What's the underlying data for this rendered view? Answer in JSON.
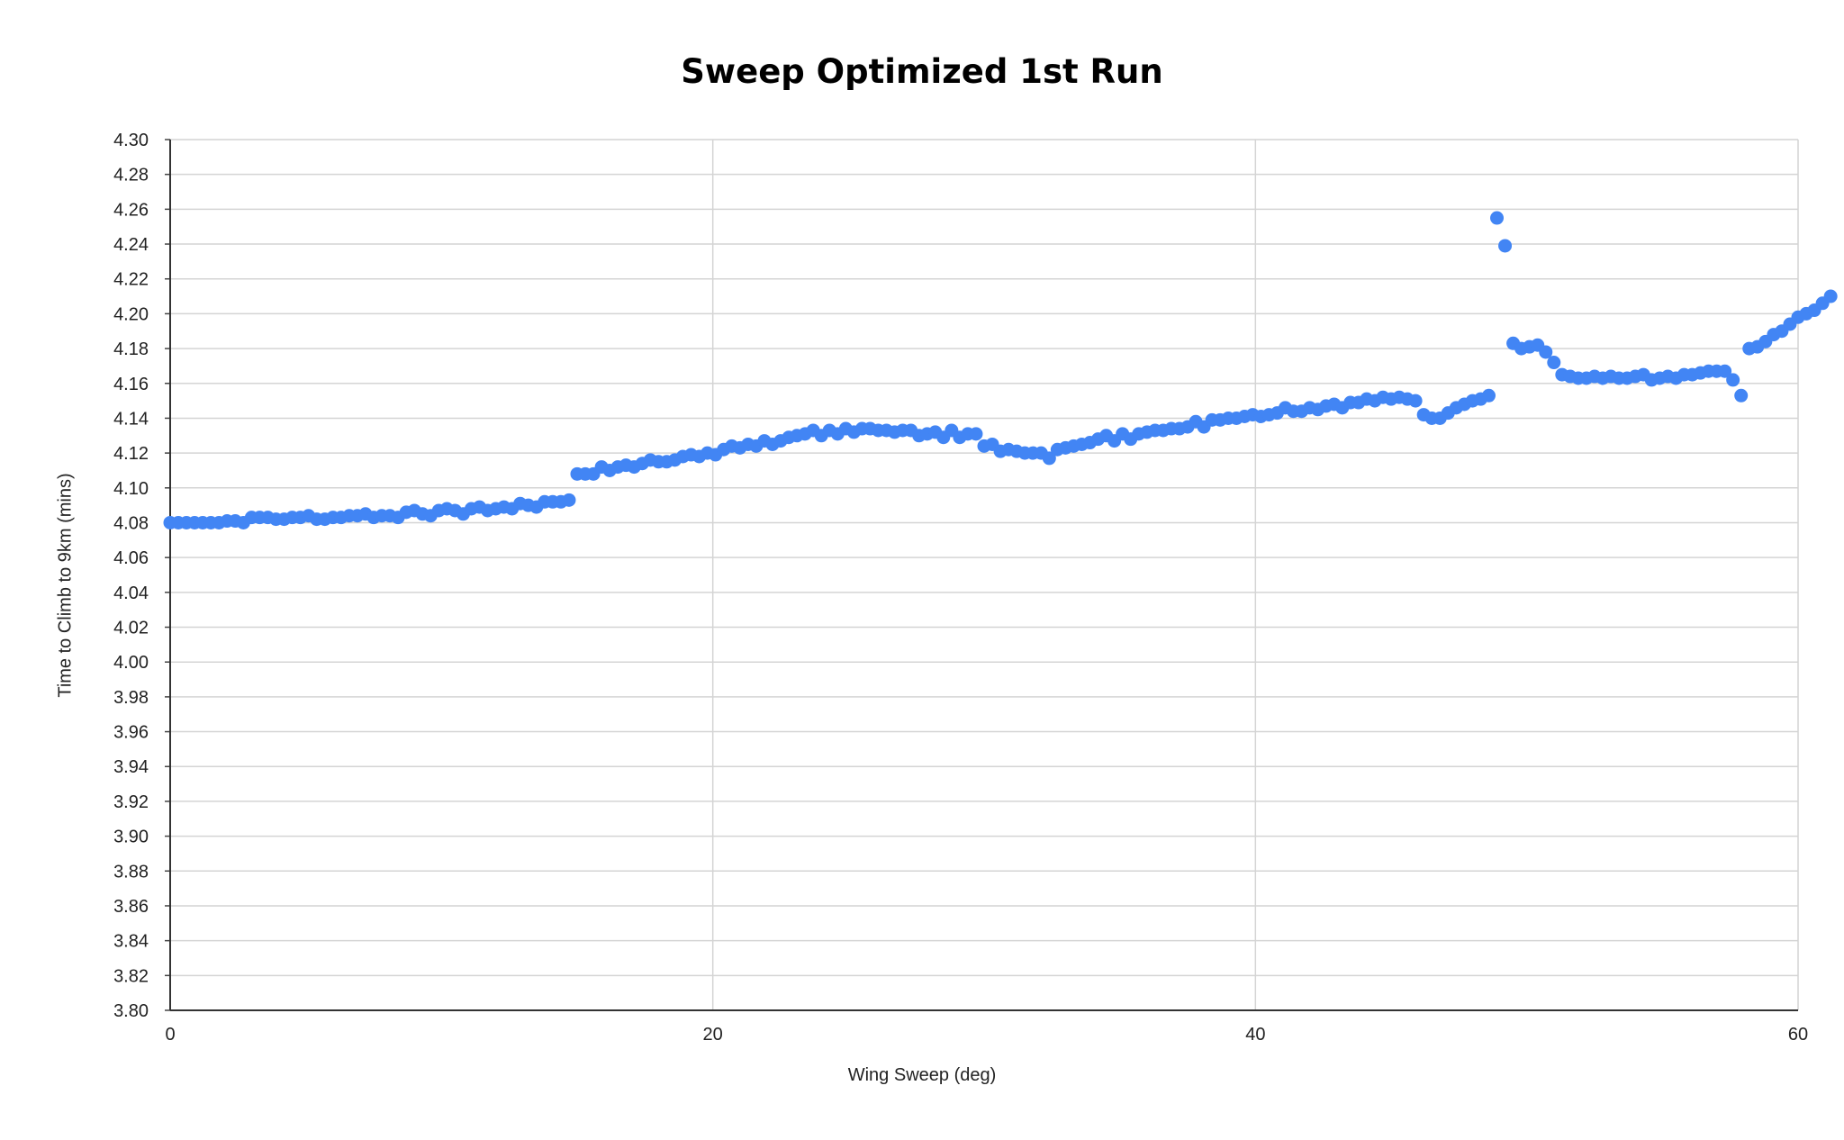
{
  "chart_data": {
    "type": "scatter",
    "title": "Sweep Optimized 1st Run",
    "xlabel": "Wing Sweep (deg)",
    "ylabel": "Time to Climb to 9km (mins)",
    "xlim": [
      0,
      60
    ],
    "ylim": [
      3.8,
      4.3
    ],
    "x_ticks": [
      "0",
      "20",
      "40",
      "60"
    ],
    "y_ticks": [
      "3.80",
      "3.82",
      "3.84",
      "3.86",
      "3.88",
      "3.90",
      "3.92",
      "3.94",
      "3.96",
      "3.98",
      "4.00",
      "4.02",
      "4.04",
      "4.06",
      "4.08",
      "4.10",
      "4.12",
      "4.14",
      "4.16",
      "4.18",
      "4.20",
      "4.22",
      "4.24",
      "4.26",
      "4.28",
      "4.30"
    ],
    "grid": true,
    "legend": "none",
    "series": [
      {
        "color": "#4285f4",
        "points": [
          [
            0.0,
            4.08
          ],
          [
            0.3,
            4.08
          ],
          [
            0.6,
            4.08
          ],
          [
            0.9,
            4.08
          ],
          [
            1.2,
            4.08
          ],
          [
            1.5,
            4.08
          ],
          [
            1.8,
            4.08
          ],
          [
            2.1,
            4.081
          ],
          [
            2.4,
            4.081
          ],
          [
            2.7,
            4.08
          ],
          [
            3.0,
            4.083
          ],
          [
            3.3,
            4.083
          ],
          [
            3.6,
            4.083
          ],
          [
            3.9,
            4.082
          ],
          [
            4.2,
            4.082
          ],
          [
            4.5,
            4.083
          ],
          [
            4.8,
            4.083
          ],
          [
            5.1,
            4.084
          ],
          [
            5.4,
            4.082
          ],
          [
            5.7,
            4.082
          ],
          [
            6.0,
            4.083
          ],
          [
            6.3,
            4.083
          ],
          [
            6.6,
            4.084
          ],
          [
            6.9,
            4.084
          ],
          [
            7.2,
            4.085
          ],
          [
            7.5,
            4.083
          ],
          [
            7.8,
            4.084
          ],
          [
            8.1,
            4.084
          ],
          [
            8.4,
            4.083
          ],
          [
            8.7,
            4.086
          ],
          [
            9.0,
            4.087
          ],
          [
            9.3,
            4.085
          ],
          [
            9.6,
            4.084
          ],
          [
            9.9,
            4.087
          ],
          [
            10.2,
            4.088
          ],
          [
            10.5,
            4.087
          ],
          [
            10.8,
            4.085
          ],
          [
            11.1,
            4.088
          ],
          [
            11.4,
            4.089
          ],
          [
            11.7,
            4.087
          ],
          [
            12.0,
            4.088
          ],
          [
            12.3,
            4.089
          ],
          [
            12.6,
            4.088
          ],
          [
            12.9,
            4.091
          ],
          [
            13.2,
            4.09
          ],
          [
            13.5,
            4.089
          ],
          [
            13.8,
            4.092
          ],
          [
            14.1,
            4.092
          ],
          [
            14.4,
            4.092
          ],
          [
            14.7,
            4.093
          ],
          [
            15.0,
            4.108
          ],
          [
            15.3,
            4.108
          ],
          [
            15.6,
            4.108
          ],
          [
            15.9,
            4.112
          ],
          [
            16.2,
            4.11
          ],
          [
            16.5,
            4.112
          ],
          [
            16.8,
            4.113
          ],
          [
            17.1,
            4.112
          ],
          [
            17.4,
            4.114
          ],
          [
            17.7,
            4.116
          ],
          [
            18.0,
            4.115
          ],
          [
            18.3,
            4.115
          ],
          [
            18.6,
            4.116
          ],
          [
            18.9,
            4.118
          ],
          [
            19.2,
            4.119
          ],
          [
            19.5,
            4.118
          ],
          [
            19.8,
            4.12
          ],
          [
            20.1,
            4.119
          ],
          [
            20.4,
            4.122
          ],
          [
            20.7,
            4.124
          ],
          [
            21.0,
            4.123
          ],
          [
            21.3,
            4.125
          ],
          [
            21.6,
            4.124
          ],
          [
            21.9,
            4.127
          ],
          [
            22.2,
            4.125
          ],
          [
            22.5,
            4.127
          ],
          [
            22.8,
            4.129
          ],
          [
            23.1,
            4.13
          ],
          [
            23.4,
            4.131
          ],
          [
            23.7,
            4.133
          ],
          [
            24.0,
            4.13
          ],
          [
            24.3,
            4.133
          ],
          [
            24.6,
            4.131
          ],
          [
            24.9,
            4.134
          ],
          [
            25.2,
            4.132
          ],
          [
            25.5,
            4.134
          ],
          [
            25.8,
            4.134
          ],
          [
            26.1,
            4.133
          ],
          [
            26.4,
            4.133
          ],
          [
            26.7,
            4.132
          ],
          [
            27.0,
            4.133
          ],
          [
            27.3,
            4.133
          ],
          [
            27.6,
            4.13
          ],
          [
            27.9,
            4.131
          ],
          [
            28.2,
            4.132
          ],
          [
            28.5,
            4.129
          ],
          [
            28.8,
            4.133
          ],
          [
            29.1,
            4.129
          ],
          [
            29.4,
            4.131
          ],
          [
            29.7,
            4.131
          ],
          [
            30.0,
            4.124
          ],
          [
            30.3,
            4.125
          ],
          [
            30.6,
            4.121
          ],
          [
            30.9,
            4.122
          ],
          [
            31.2,
            4.121
          ],
          [
            31.5,
            4.12
          ],
          [
            31.8,
            4.12
          ],
          [
            32.1,
            4.12
          ],
          [
            32.4,
            4.117
          ],
          [
            32.7,
            4.122
          ],
          [
            33.0,
            4.123
          ],
          [
            33.3,
            4.124
          ],
          [
            33.6,
            4.125
          ],
          [
            33.9,
            4.126
          ],
          [
            34.2,
            4.128
          ],
          [
            34.5,
            4.13
          ],
          [
            34.8,
            4.127
          ],
          [
            35.1,
            4.131
          ],
          [
            35.4,
            4.128
          ],
          [
            35.7,
            4.131
          ],
          [
            36.0,
            4.132
          ],
          [
            36.3,
            4.133
          ],
          [
            36.6,
            4.133
          ],
          [
            36.9,
            4.134
          ],
          [
            37.2,
            4.134
          ],
          [
            37.5,
            4.135
          ],
          [
            37.8,
            4.138
          ],
          [
            38.1,
            4.135
          ],
          [
            38.4,
            4.139
          ],
          [
            38.7,
            4.139
          ],
          [
            39.0,
            4.14
          ],
          [
            39.3,
            4.14
          ],
          [
            39.6,
            4.141
          ],
          [
            39.9,
            4.142
          ],
          [
            40.2,
            4.141
          ],
          [
            40.5,
            4.142
          ],
          [
            40.8,
            4.143
          ],
          [
            41.1,
            4.146
          ],
          [
            41.4,
            4.144
          ],
          [
            41.7,
            4.144
          ],
          [
            42.0,
            4.146
          ],
          [
            42.3,
            4.145
          ],
          [
            42.6,
            4.147
          ],
          [
            42.9,
            4.148
          ],
          [
            43.2,
            4.146
          ],
          [
            43.5,
            4.149
          ],
          [
            43.8,
            4.149
          ],
          [
            44.1,
            4.151
          ],
          [
            44.4,
            4.15
          ],
          [
            44.7,
            4.152
          ],
          [
            45.0,
            4.151
          ],
          [
            45.3,
            4.152
          ],
          [
            45.6,
            4.151
          ],
          [
            45.9,
            4.15
          ],
          [
            46.2,
            4.142
          ],
          [
            46.5,
            4.14
          ],
          [
            46.8,
            4.14
          ],
          [
            47.1,
            4.143
          ],
          [
            47.4,
            4.146
          ],
          [
            47.7,
            4.148
          ],
          [
            48.0,
            4.15
          ],
          [
            48.3,
            4.151
          ],
          [
            48.6,
            4.153
          ],
          [
            48.9,
            4.255
          ],
          [
            49.2,
            4.239
          ],
          [
            49.5,
            4.183
          ],
          [
            49.8,
            4.18
          ],
          [
            50.1,
            4.181
          ],
          [
            50.4,
            4.182
          ],
          [
            50.7,
            4.178
          ],
          [
            51.0,
            4.172
          ],
          [
            51.3,
            4.165
          ],
          [
            51.6,
            4.164
          ],
          [
            51.9,
            4.163
          ],
          [
            52.2,
            4.163
          ],
          [
            52.5,
            4.164
          ],
          [
            52.8,
            4.163
          ],
          [
            53.1,
            4.164
          ],
          [
            53.4,
            4.163
          ],
          [
            53.7,
            4.163
          ],
          [
            54.0,
            4.164
          ],
          [
            54.3,
            4.165
          ],
          [
            54.6,
            4.162
          ],
          [
            54.9,
            4.163
          ],
          [
            55.2,
            4.164
          ],
          [
            55.5,
            4.163
          ],
          [
            55.8,
            4.165
          ],
          [
            56.1,
            4.165
          ],
          [
            56.4,
            4.166
          ],
          [
            56.7,
            4.167
          ],
          [
            57.0,
            4.167
          ],
          [
            57.3,
            4.167
          ],
          [
            57.6,
            4.162
          ],
          [
            57.9,
            4.153
          ],
          [
            58.2,
            4.18
          ],
          [
            58.5,
            4.181
          ],
          [
            58.8,
            4.184
          ],
          [
            59.1,
            4.188
          ],
          [
            59.4,
            4.19
          ],
          [
            59.7,
            4.194
          ],
          [
            60.0,
            4.198
          ],
          [
            60.3,
            4.2
          ],
          [
            60.6,
            4.202
          ],
          [
            60.9,
            4.206
          ],
          [
            61.2,
            4.21
          ]
        ]
      }
    ]
  }
}
